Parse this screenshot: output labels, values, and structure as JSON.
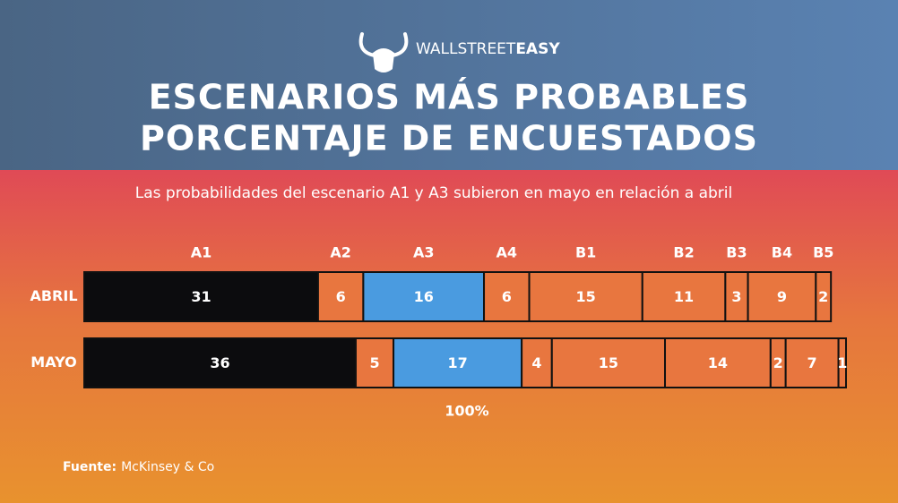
{
  "brand": {
    "light": "WALLSTREET",
    "bold": "EASY"
  },
  "chart_data": {
    "type": "stacked-bar",
    "title": [
      "ESCENARIOS MÁS PROBABLES",
      "PORCENTAJE DE ENCUESTADOS"
    ],
    "subtitle": "Las probabilidades del escenario A1 y A3 subieron en mayo en relación a abril",
    "annotation": "100%",
    "categories": [
      "ABRIL",
      "MAYO"
    ],
    "xlim": [
      0,
      101
    ],
    "series": [
      {
        "name": "A1",
        "color": "#0c0c0e",
        "values": [
          31,
          36
        ]
      },
      {
        "name": "A2",
        "color": "#e8763f",
        "values": [
          6,
          5
        ]
      },
      {
        "name": "A3",
        "color": "#4a9be0",
        "values": [
          16,
          17
        ]
      },
      {
        "name": "A4",
        "color": "#e8763f",
        "values": [
          6,
          4
        ]
      },
      {
        "name": "B1",
        "color": "#e8763f",
        "values": [
          15,
          15
        ]
      },
      {
        "name": "B2",
        "color": "#e8763f",
        "values": [
          11,
          14
        ]
      },
      {
        "name": "B3",
        "color": "#e8763f",
        "values": [
          3,
          2
        ]
      },
      {
        "name": "B4",
        "color": "#e8763f",
        "values": [
          9,
          7
        ]
      },
      {
        "name": "B5",
        "color": "#e8763f",
        "values": [
          2,
          1
        ]
      }
    ]
  },
  "source": {
    "label": "Fuente:",
    "text": "McKinsey & Co"
  }
}
